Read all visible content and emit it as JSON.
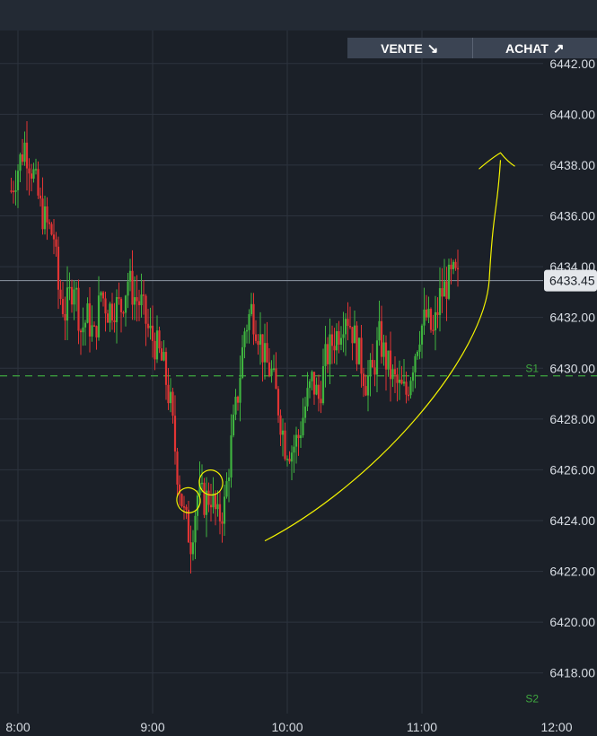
{
  "trade_buttons": {
    "sell_label": "VENTE",
    "sell_icon": "arrow-down-right-icon",
    "sell_glyph": "↘",
    "buy_label": "ACHAT",
    "buy_icon": "arrow-up-right-icon",
    "buy_glyph": "↗"
  },
  "colors": {
    "background": "#1b2028",
    "grid": "#2c333e",
    "axis_text": "#d6dbe2",
    "up_candle": "#3fb33f",
    "down_candle": "#e23434",
    "support_line": "#3fa63f",
    "annotation": "#f2f200",
    "price_line": "#8e97a4"
  },
  "chart_data": {
    "type": "candlestick",
    "x_ticks": [
      "8:00",
      "9:00",
      "10:00",
      "11:00",
      "12:00"
    ],
    "y_ticks": [
      "6442.00",
      "6440.00",
      "6438.00",
      "6436.00",
      "6434.00",
      "6432.00",
      "6430.00",
      "6428.00",
      "6426.00",
      "6424.00",
      "6422.00",
      "6420.00",
      "6418.00"
    ],
    "ylim": [
      6416.4,
      6443.3
    ],
    "last_price": "6433.45",
    "support_lines": [
      {
        "label": "S1",
        "price": 6429.7
      },
      {
        "label": "S2",
        "price": 6416.7
      }
    ],
    "grid": true,
    "close_path": [
      [
        "7:57",
        6437.0
      ],
      [
        "8:03",
        6438.8
      ],
      [
        "8:07",
        6437.6
      ],
      [
        "8:10",
        6436.3
      ],
      [
        "8:13",
        6435.6
      ],
      [
        "8:16",
        6435.2
      ],
      [
        "8:18",
        6433.1
      ],
      [
        "8:21",
        6432.2
      ],
      [
        "8:25",
        6433.5
      ],
      [
        "8:28",
        6431.5
      ],
      [
        "8:31",
        6432.0
      ],
      [
        "8:34",
        6431.2
      ],
      [
        "8:37",
        6433.0
      ],
      [
        "8:40",
        6432.3
      ],
      [
        "8:43",
        6432.5
      ],
      [
        "8:46",
        6432.4
      ],
      [
        "8:49",
        6433.5
      ],
      [
        "8:52",
        6432.8
      ],
      [
        "8:55",
        6432.5
      ],
      [
        "8:58",
        6431.5
      ],
      [
        "9:02",
        6430.8
      ],
      [
        "9:05",
        6430.0
      ],
      [
        "9:08",
        6428.5
      ],
      [
        "9:11",
        6426.0
      ],
      [
        "9:14",
        6424.2
      ],
      [
        "9:17",
        6423.2
      ],
      [
        "9:20",
        6425.0
      ],
      [
        "9:23",
        6424.8
      ],
      [
        "9:26",
        6425.0
      ],
      [
        "9:29",
        6424.0
      ],
      [
        "9:32",
        6424.6
      ],
      [
        "9:35",
        6427.0
      ],
      [
        "9:38",
        6429.0
      ],
      [
        "9:41",
        6431.5
      ],
      [
        "9:44",
        6432.3
      ],
      [
        "9:47",
        6431.5
      ],
      [
        "9:50",
        6430.3
      ],
      [
        "9:53",
        6429.8
      ],
      [
        "9:56",
        6428.5
      ],
      [
        "9:59",
        6427.0
      ],
      [
        "10:02",
        6426.8
      ],
      [
        "10:05",
        6427.3
      ],
      [
        "10:08",
        6428.5
      ],
      [
        "10:11",
        6429.5
      ],
      [
        "10:14",
        6428.8
      ],
      [
        "10:17",
        6430.3
      ],
      [
        "10:20",
        6431.0
      ],
      [
        "10:23",
        6431.5
      ],
      [
        "10:26",
        6432.3
      ],
      [
        "10:29",
        6431.5
      ],
      [
        "10:32",
        6430.5
      ],
      [
        "10:35",
        6429.5
      ],
      [
        "10:38",
        6429.8
      ],
      [
        "10:41",
        6431.2
      ],
      [
        "10:44",
        6430.3
      ],
      [
        "10:47",
        6429.6
      ],
      [
        "10:50",
        6429.2
      ],
      [
        "10:53",
        6429.0
      ],
      [
        "10:56",
        6430.3
      ],
      [
        "10:59",
        6431.5
      ],
      [
        "11:02",
        6432.0
      ],
      [
        "11:05",
        6431.3
      ],
      [
        "11:08",
        6432.8
      ],
      [
        "11:11",
        6433.3
      ],
      [
        "11:14",
        6433.6
      ],
      [
        "11:16",
        6433.45
      ]
    ],
    "annotations": [
      {
        "type": "arrow",
        "description": "hand-drawn upward curved arrow from about 9:50 at 6423.2 rising to about 11:35 at 6438.2"
      },
      {
        "type": "circle",
        "time": "9:16",
        "price": 6424.8
      },
      {
        "type": "circle",
        "time": "9:26",
        "price": 6425.5
      }
    ]
  }
}
